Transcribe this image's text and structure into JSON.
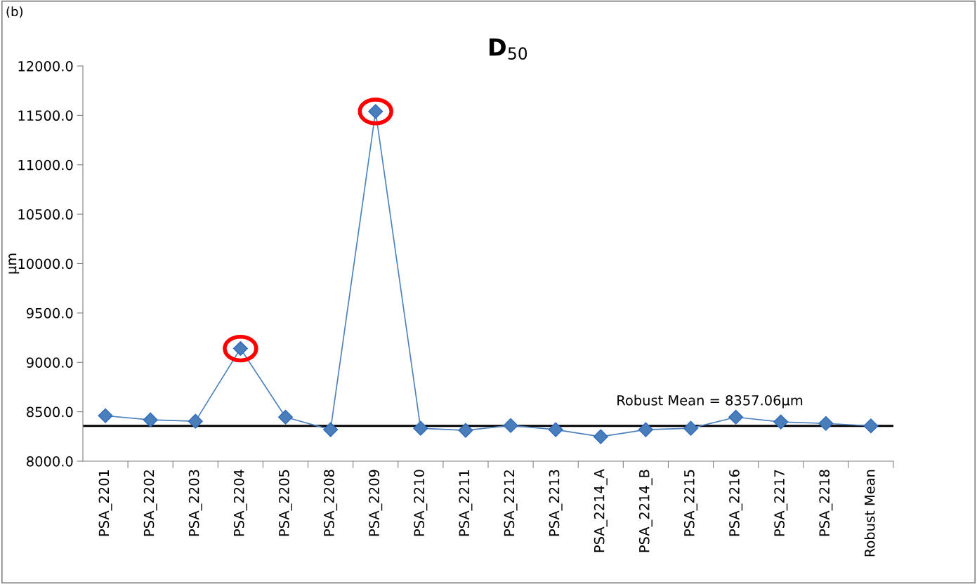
{
  "chart_data": {
    "type": "line",
    "title": "D$_{50}$",
    "ylabel": "µm",
    "annotations": [
      "(b)"
    ],
    "categories": [
      "PSA_2201",
      "PSA_2202",
      "PSA_2203",
      "PSA_2204",
      "PSA_2205",
      "PSA_2208",
      "PSA_2209",
      "PSA_2210",
      "PSA_2211",
      "PSA_2212",
      "PSA_2213",
      "PSA_2214_A",
      "PSA_2214_B",
      "PSA_2215",
      "PSA_2216",
      "PSA_2217",
      "PSA_2218",
      "Robust Mean"
    ],
    "series": [
      {
        "color": "#4f81bd",
        "values": [
          8460,
          8418,
          8404,
          9140,
          8446,
          8319,
          11540,
          8333,
          8312,
          8361,
          8319,
          8248,
          8319,
          8333,
          8446,
          8397,
          8382,
          8357.06
        ]
      }
    ],
    "ylim": [
      8000,
      12000
    ],
    "yticks": [
      {
        "value": 8000,
        "label": "8000.0"
      },
      {
        "value": 8500,
        "label": "8500.0"
      },
      {
        "value": 9000,
        "label": "9000.0"
      },
      {
        "value": 9500,
        "label": "9500.0"
      },
      {
        "value": 10000,
        "label": "10000.0"
      },
      {
        "value": 10500,
        "label": "10500.0"
      },
      {
        "value": 11000,
        "label": "11000.0"
      },
      {
        "value": 11500,
        "label": "11500.0"
      },
      {
        "value": 12000,
        "label": "12000.0"
      }
    ],
    "ref_lines": [
      {
        "axis": "y",
        "value": 8357.06,
        "label": "Robust Mean = 8357.06µm",
        "color": "#000000",
        "line_style": "solid"
      }
    ],
    "grid": false,
    "legend": false,
    "marker": "diamond",
    "line_style": "solid"
  }
}
